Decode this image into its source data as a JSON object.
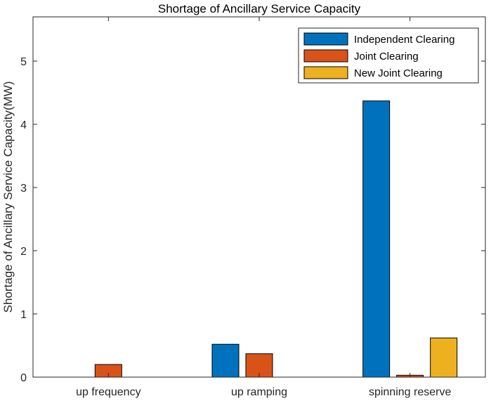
{
  "chart_data": {
    "type": "bar",
    "title": "Shortage of Ancillary Service Capacity",
    "xlabel": "",
    "ylabel": "Shortage of Ancillary Service Capacity(MW)",
    "categories": [
      "up frequency",
      "up ramping",
      "spinning reserve"
    ],
    "series": [
      {
        "name": "Independent Clearing",
        "color": "#0072BD",
        "values": [
          0,
          0.52,
          4.37
        ]
      },
      {
        "name": "Joint Clearing",
        "color": "#D95319",
        "values": [
          0.2,
          0.37,
          0.03
        ]
      },
      {
        "name": "New Joint Clearing",
        "color": "#EDB120",
        "values": [
          0,
          0,
          0.62
        ]
      }
    ],
    "ylim": [
      0,
      5.7
    ],
    "yticks": [
      0,
      1,
      2,
      3,
      4,
      5
    ],
    "legend_position": "top-right",
    "grid": false
  }
}
